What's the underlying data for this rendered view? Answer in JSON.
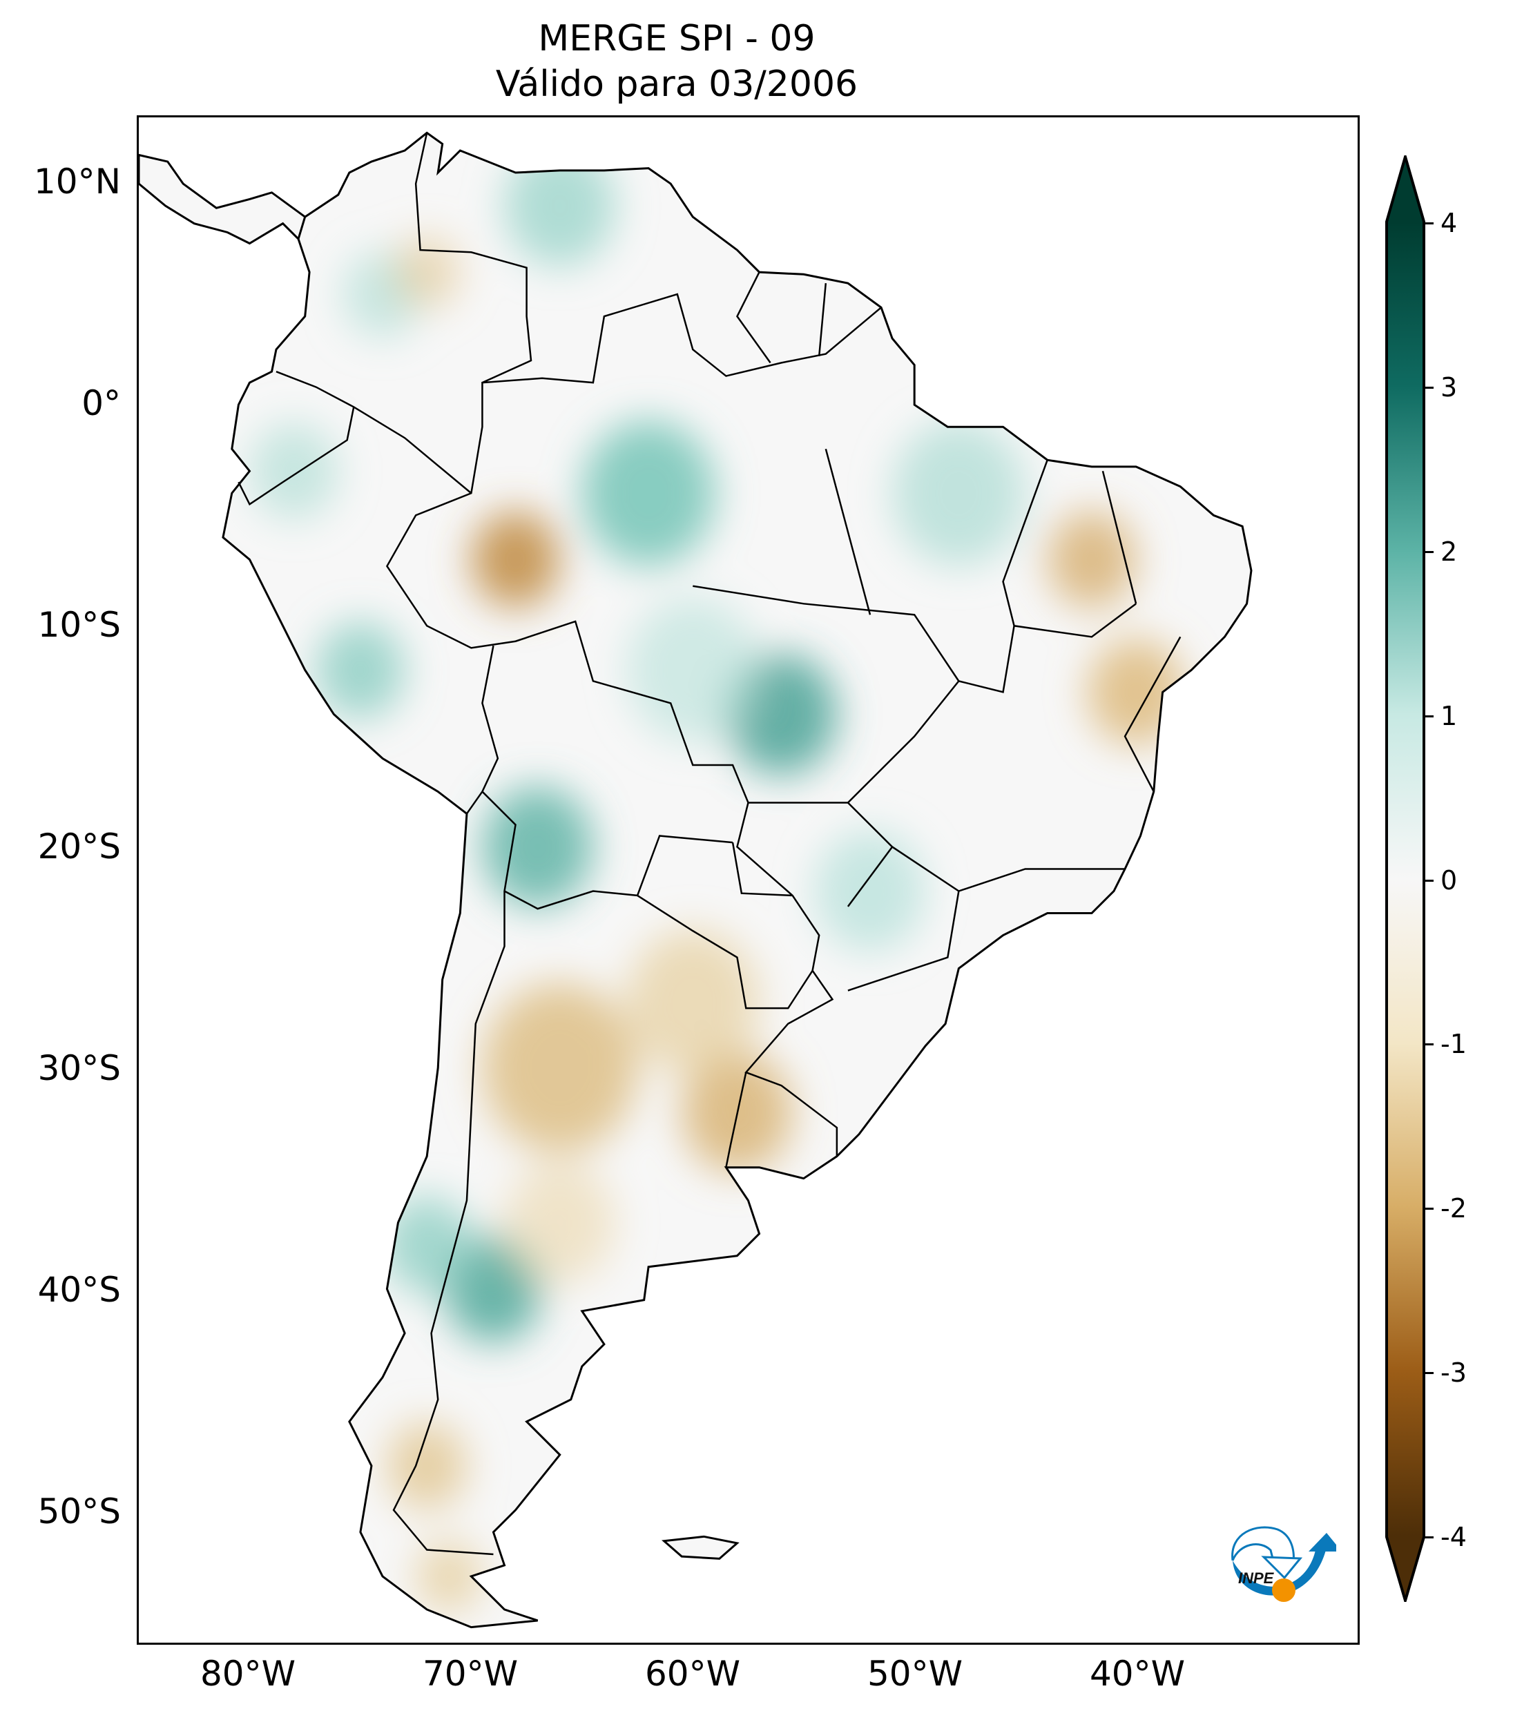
{
  "title": {
    "line1": "MERGE   SPI - 09",
    "line2": "Válido para 03/2006"
  },
  "map": {
    "region": "South America",
    "lon_range": [
      -85,
      -30
    ],
    "lat_range": [
      -56,
      13
    ],
    "lon_ticks": [
      {
        "value": -80,
        "label": "80°W"
      },
      {
        "value": -70,
        "label": "70°W"
      },
      {
        "value": -60,
        "label": "60°W"
      },
      {
        "value": -50,
        "label": "50°W"
      },
      {
        "value": -40,
        "label": "40°W"
      }
    ],
    "lat_ticks": [
      {
        "value": 10,
        "label": "10°N"
      },
      {
        "value": 0,
        "label": "0°"
      },
      {
        "value": -10,
        "label": "10°S"
      },
      {
        "value": -20,
        "label": "20°S"
      },
      {
        "value": -30,
        "label": "30°S"
      },
      {
        "value": -40,
        "label": "40°S"
      },
      {
        "value": -50,
        "label": "50°S"
      }
    ]
  },
  "colorbar": {
    "colormap": "BrBG",
    "range": [
      -4,
      4
    ],
    "extend": "both",
    "ticks": [
      "4",
      "3",
      "2",
      "1",
      "0",
      "-1",
      "-2",
      "-3",
      "-4"
    ],
    "colors": [
      "#003c30",
      "#0f6b61",
      "#5cb3a6",
      "#c7e9e3",
      "#f7f7f7",
      "#f3e6c6",
      "#d7ad66",
      "#9c5d17",
      "#4d2e08"
    ]
  },
  "logo": {
    "text": "INPE",
    "colors": {
      "blue": "#0a79bb",
      "orange": "#f39200"
    }
  }
}
